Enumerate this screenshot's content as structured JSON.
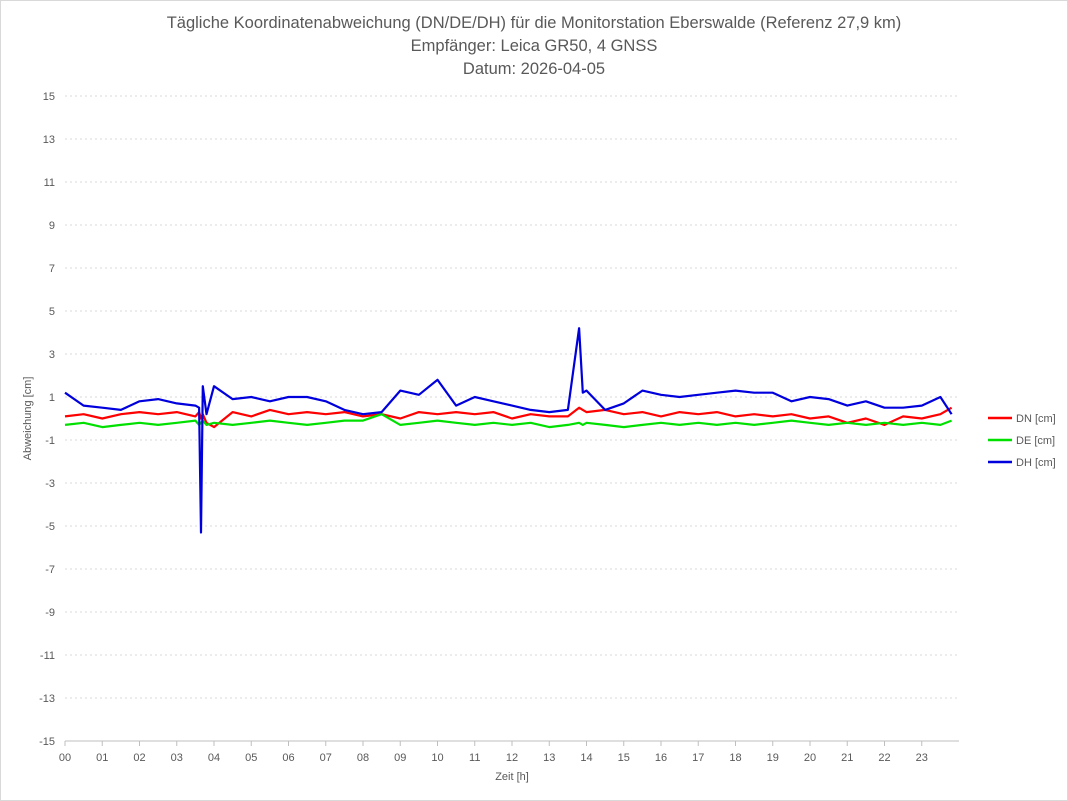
{
  "titles": {
    "line1": "Tägliche Koordinatenabweichung (DN/DE/DH) für die Monitorstation Eberswalde (Referenz 27,9 km)",
    "line2": "Empfänger: Leica GR50, 4 GNSS",
    "line3": "Datum: 2026-04-05"
  },
  "chart_data": {
    "type": "line",
    "title": "Tägliche Koordinatenabweichung (DN/DE/DH) für die Monitorstation Eberswalde (Referenz 27,9 km)",
    "subtitle": [
      "Empfänger: Leica GR50, 4 GNSS",
      "Datum: 2026-04-05"
    ],
    "xlabel": "Zeit [h]",
    "ylabel": "Abweichung [cm]",
    "xlim": [
      0,
      24
    ],
    "ylim": [
      -15,
      15
    ],
    "x_tick_labels": [
      "00",
      "01",
      "02",
      "03",
      "04",
      "05",
      "06",
      "07",
      "08",
      "09",
      "10",
      "11",
      "12",
      "13",
      "14",
      "15",
      "16",
      "17",
      "18",
      "19",
      "20",
      "21",
      "22",
      "23"
    ],
    "y_ticks": [
      15,
      13,
      11,
      9,
      7,
      5,
      3,
      1,
      -1,
      -3,
      -5,
      -7,
      -9,
      -11,
      -13,
      -15
    ],
    "grid": "horizontal dotted",
    "legend_position": "right",
    "x": [
      0,
      0.5,
      1,
      1.5,
      2,
      2.5,
      3,
      3.5,
      3.6,
      3.65,
      3.7,
      3.8,
      4,
      4.5,
      5,
      5.5,
      6,
      6.5,
      7,
      7.5,
      8,
      8.5,
      9,
      9.5,
      10,
      10.5,
      11,
      11.5,
      12,
      12.5,
      13,
      13.5,
      13.8,
      13.9,
      14,
      14.5,
      15,
      15.5,
      16,
      16.5,
      17,
      17.5,
      18,
      18.5,
      19,
      19.5,
      20,
      20.5,
      21,
      21.5,
      22,
      22.5,
      23,
      23.5,
      23.8
    ],
    "series": [
      {
        "name": "DN [cm]",
        "color": "#ff0000",
        "values": [
          0.1,
          0.2,
          0.0,
          0.2,
          0.3,
          0.2,
          0.3,
          0.1,
          0.3,
          0.0,
          0.2,
          -0.2,
          -0.4,
          0.3,
          0.1,
          0.4,
          0.2,
          0.3,
          0.2,
          0.3,
          0.1,
          0.2,
          0.0,
          0.3,
          0.2,
          0.3,
          0.2,
          0.3,
          0.0,
          0.2,
          0.1,
          0.1,
          0.5,
          0.4,
          0.3,
          0.4,
          0.2,
          0.3,
          0.1,
          0.3,
          0.2,
          0.3,
          0.1,
          0.2,
          0.1,
          0.2,
          0.0,
          0.1,
          -0.2,
          0.0,
          -0.3,
          0.1,
          0.0,
          0.2,
          0.5
        ]
      },
      {
        "name": "DE [cm]",
        "color": "#00e000",
        "values": [
          -0.3,
          -0.2,
          -0.4,
          -0.3,
          -0.2,
          -0.3,
          -0.2,
          -0.1,
          -0.3,
          -0.2,
          -0.1,
          -0.3,
          -0.2,
          -0.3,
          -0.2,
          -0.1,
          -0.2,
          -0.3,
          -0.2,
          -0.1,
          -0.1,
          0.2,
          -0.3,
          -0.2,
          -0.1,
          -0.2,
          -0.3,
          -0.2,
          -0.3,
          -0.2,
          -0.4,
          -0.3,
          -0.2,
          -0.3,
          -0.2,
          -0.3,
          -0.4,
          -0.3,
          -0.2,
          -0.3,
          -0.2,
          -0.3,
          -0.2,
          -0.3,
          -0.2,
          -0.1,
          -0.2,
          -0.3,
          -0.2,
          -0.3,
          -0.2,
          -0.3,
          -0.2,
          -0.3,
          -0.1
        ]
      },
      {
        "name": "DH [cm]",
        "color": "#0000dd",
        "values": [
          1.2,
          0.6,
          0.5,
          0.4,
          0.8,
          0.9,
          0.7,
          0.6,
          0.5,
          -5.3,
          1.5,
          0.2,
          1.5,
          0.9,
          1.0,
          0.8,
          1.0,
          1.0,
          0.8,
          0.4,
          0.2,
          0.3,
          1.3,
          1.1,
          1.8,
          0.6,
          1.0,
          0.8,
          0.6,
          0.4,
          0.3,
          0.4,
          4.2,
          1.2,
          1.3,
          0.4,
          0.7,
          1.3,
          1.1,
          1.0,
          1.1,
          1.2,
          1.3,
          1.2,
          1.2,
          0.8,
          1.0,
          0.9,
          0.6,
          0.8,
          0.5,
          0.5,
          0.6,
          1.0,
          0.2
        ]
      }
    ]
  }
}
